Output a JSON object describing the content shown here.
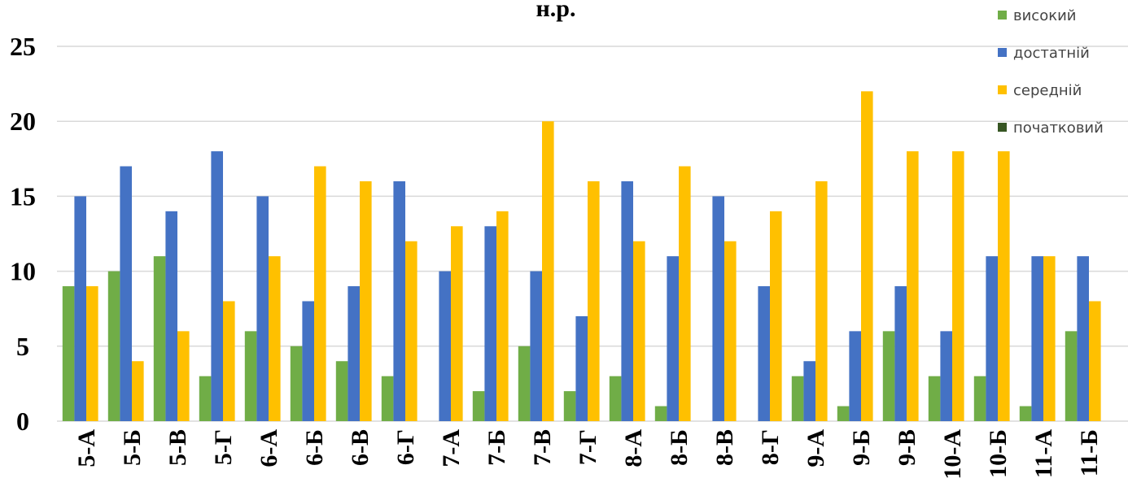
{
  "chart_data": {
    "type": "bar",
    "title": "н.р.",
    "categories": [
      "5-А",
      "5-Б",
      "5-В",
      "5-Г",
      "6-А",
      "6-Б",
      "6-В",
      "6-Г",
      "7-А",
      "7-Б",
      "7-В",
      "7-Г",
      "8-А",
      "8-Б",
      "8-В",
      "8-Г",
      "9-А",
      "9-Б",
      "9-В",
      "10-А",
      "10-Б",
      "11-А",
      "11-Б"
    ],
    "series": [
      {
        "name": "високий",
        "color": "#70ad47",
        "values": [
          9,
          10,
          11,
          3,
          6,
          5,
          4,
          3,
          0,
          2,
          5,
          2,
          3,
          1,
          0,
          0,
          3,
          1,
          6,
          3,
          3,
          1,
          6
        ]
      },
      {
        "name": "достатній",
        "color": "#4472c4",
        "values": [
          15,
          17,
          14,
          18,
          15,
          8,
          9,
          16,
          10,
          13,
          10,
          7,
          16,
          11,
          15,
          9,
          4,
          6,
          9,
          6,
          11,
          11,
          11
        ]
      },
      {
        "name": "середній",
        "color": "#ffc000",
        "values": [
          9,
          4,
          6,
          8,
          11,
          17,
          16,
          12,
          13,
          14,
          20,
          16,
          12,
          17,
          12,
          14,
          16,
          22,
          18,
          18,
          18,
          11,
          8
        ]
      },
      {
        "name": "початковий",
        "color": "#375623",
        "values": [
          0,
          0,
          0,
          0,
          0,
          0,
          0,
          0,
          0,
          0,
          0,
          0,
          0,
          0,
          0,
          0,
          0,
          0,
          0,
          0,
          0,
          0,
          0
        ]
      }
    ],
    "ylim": [
      0,
      25
    ],
    "yticks": [
      0,
      5,
      10,
      15,
      20,
      25
    ],
    "grid": true,
    "legend": "top-right"
  }
}
